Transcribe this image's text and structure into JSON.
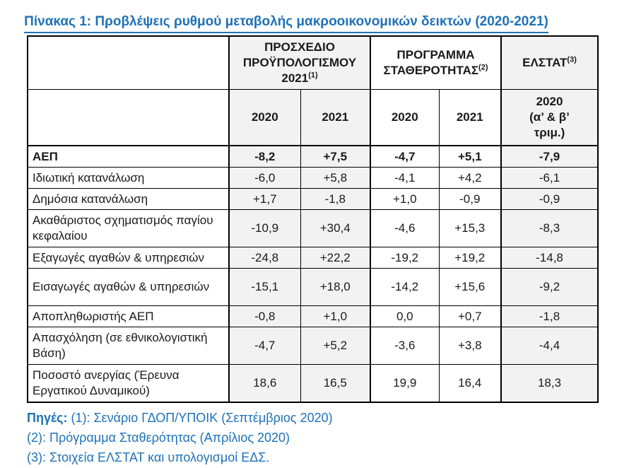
{
  "title": "Πίνακας 1: Προβλέψεις ρυθμού μεταβολής μακροοικονομικών δεικτών (2020-2021)",
  "colors": {
    "accent_blue": "#1F72B8",
    "shading_gray": "#F2F2F2",
    "border_black": "#000000"
  },
  "table": {
    "column_groups": [
      {
        "label": "ΠΡΟΣΧΕΔΙΟ ΠΡΟΫΠΟΛΟΓΙΣΜΟΥ 2021",
        "footnote": "(1)",
        "shaded": true
      },
      {
        "label": "ΠΡΟΓΡΑΜΜΑ ΣΤΑΘΕΡΟΤΗΤΑΣ",
        "footnote": "(2)",
        "shaded": false
      },
      {
        "label": "ΕΛΣΤΑΤ",
        "footnote": "(3)",
        "shaded": true
      }
    ],
    "year_headers": {
      "g1_2020": "2020",
      "g1_2021": "2021",
      "g2_2020": "2020",
      "g2_2021": "2021",
      "g3_2020": "2020\n(α’ & β’\nτριμ.)"
    },
    "rows": [
      {
        "label": "ΑΕΠ",
        "values": [
          "-8,2",
          "+7,5",
          "-4,7",
          "+5,1",
          "-7,9"
        ],
        "bold": true,
        "twoline": false
      },
      {
        "label": "Ιδιωτική κατανάλωση",
        "values": [
          "-6,0",
          "+5,8",
          "-4,1",
          "+4,2",
          "-6,1"
        ],
        "bold": false,
        "twoline": false
      },
      {
        "label": "Δημόσια κατανάλωση",
        "values": [
          "+1,7",
          "-1,8",
          "+1,0",
          "-0,9",
          "-0,9"
        ],
        "bold": false,
        "twoline": false
      },
      {
        "label": "Ακαθάριστος σχηματισμός παγίου κεφαλαίου",
        "values": [
          "-10,9",
          "+30,4",
          "-4,6",
          "+15,3",
          "-8,3"
        ],
        "bold": false,
        "twoline": true
      },
      {
        "label": "Εξαγωγές αγαθών & υπηρεσιών",
        "values": [
          "-24,8",
          "+22,2",
          "-19,2",
          "+19,2",
          "-14,8"
        ],
        "bold": false,
        "twoline": false
      },
      {
        "label": "Εισαγωγές αγαθών & υπηρεσιών",
        "values": [
          "-15,1",
          "+18,0",
          "-14,2",
          "+15,6",
          "-9,2"
        ],
        "bold": false,
        "twoline": true
      },
      {
        "label": "Αποπληθωριστής ΑΕΠ",
        "values": [
          "-0,8",
          "+1,0",
          "0,0",
          "+0,7",
          "-1,8"
        ],
        "bold": false,
        "twoline": false
      },
      {
        "label": "Απασχόληση (σε εθνικολογιστική Βάση)",
        "values": [
          "-4,7",
          "+5,2",
          "-3,6",
          "+3,8",
          "-4,4"
        ],
        "bold": false,
        "twoline": true
      },
      {
        "label": "Ποσοστό ανεργίας (Έρευνα Εργατικού Δυναμικού)",
        "values": [
          "18,6",
          "16,5",
          "19,9",
          "16,4",
          "18,3"
        ],
        "bold": false,
        "twoline": true
      }
    ]
  },
  "sources": {
    "label": "Πηγές:",
    "lines": [
      "(1): Σενάριο ΓΔΟΠ/ΥΠΟΙΚ (Σεπτέμβριος 2020)",
      "(2): Πρόγραμμα Σταθερότητας (Απρίλιος 2020)",
      "(3): Στοιχεία ΕΛΣΤΑΤ και υπολογισμοί ΕΔΣ."
    ]
  }
}
